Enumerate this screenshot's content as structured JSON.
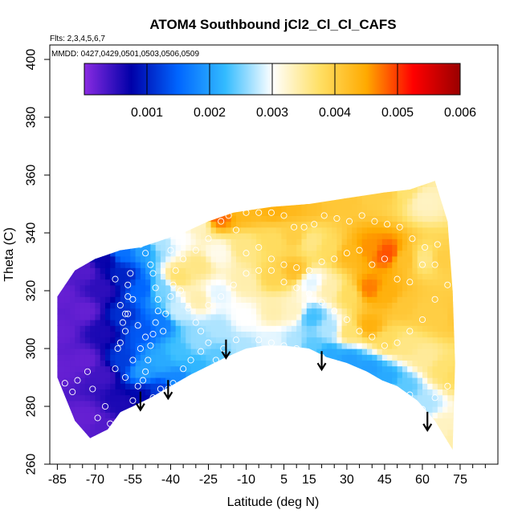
{
  "chart_data": {
    "type": "heatmap",
    "title": "ATOM4 Southbound jCl2_Cl_Cl_CAFS",
    "subtitle_flights": "Flts: 2,3,4,5,6,7",
    "subtitle_dates": "MMDD: 0427,0429,0501,0503,0506,0509",
    "xlabel": "Latitude (deg N)",
    "ylabel": "Theta (C)",
    "xlim": [
      -88,
      90
    ],
    "ylim": [
      260,
      405
    ],
    "x_ticks": [
      "-85",
      "-70",
      "-55",
      "-40",
      "-25",
      "-10",
      "5",
      "15",
      "30",
      "45",
      "60",
      "75"
    ],
    "x_tick_values": [
      -85,
      -70,
      -55,
      -40,
      -25,
      -10,
      5,
      15,
      30,
      45,
      60,
      75
    ],
    "y_ticks": [
      "260",
      "280",
      "300",
      "320",
      "340",
      "360",
      "380",
      "400"
    ],
    "y_tick_values": [
      260,
      280,
      300,
      320,
      340,
      360,
      380,
      400
    ],
    "colorbar": {
      "min": 0.0,
      "max": 0.006,
      "tick_labels": [
        "0.001",
        "0.002",
        "0.003",
        "0.004",
        "0.005",
        "0.006"
      ],
      "tick_values": [
        0.001,
        0.002,
        0.003,
        0.004,
        0.005,
        0.006
      ],
      "colors": [
        "#8a2be2",
        "#0000a8",
        "#0066ff",
        "#33bbff",
        "#ffffff",
        "#ffe066",
        "#ffaa00",
        "#ff0000",
        "#990000"
      ]
    },
    "field_boundary": {
      "top": [
        [
          -85,
          318
        ],
        [
          -78,
          327
        ],
        [
          -70,
          331
        ],
        [
          -60,
          334
        ],
        [
          -52,
          335
        ],
        [
          -45,
          337
        ],
        [
          -35,
          340
        ],
        [
          -25,
          344
        ],
        [
          -15,
          347
        ],
        [
          0,
          349
        ],
        [
          15,
          350
        ],
        [
          30,
          352
        ],
        [
          45,
          354
        ],
        [
          55,
          355
        ],
        [
          65,
          358
        ],
        [
          70,
          344
        ],
        [
          72,
          320
        ],
        [
          73,
          295
        ],
        [
          72,
          265
        ]
      ],
      "bottom": [
        [
          72,
          265
        ],
        [
          65,
          275
        ],
        [
          58,
          282
        ],
        [
          50,
          287
        ],
        [
          44,
          289
        ],
        [
          38,
          292
        ],
        [
          30,
          295
        ],
        [
          22,
          297
        ],
        [
          15,
          300
        ],
        [
          5,
          301
        ],
        [
          -3,
          301
        ],
        [
          -10,
          300
        ],
        [
          -18,
          297
        ],
        [
          -25,
          294
        ],
        [
          -32,
          291
        ],
        [
          -40,
          287
        ],
        [
          -48,
          283
        ],
        [
          -55,
          280
        ],
        [
          -60,
          278
        ],
        [
          -65,
          272
        ],
        [
          -72,
          269
        ],
        [
          -78,
          275
        ],
        [
          -85,
          290
        ]
      ]
    },
    "field_points": [
      {
        "x": -85,
        "y": 292,
        "v": 0.0002
      },
      {
        "x": -85,
        "y": 305,
        "v": 0.0002
      },
      {
        "x": -85,
        "y": 318,
        "v": 0.0002
      },
      {
        "x": -75,
        "y": 275,
        "v": 0.0002
      },
      {
        "x": -75,
        "y": 295,
        "v": 0.0002
      },
      {
        "x": -75,
        "y": 312,
        "v": 0.0002
      },
      {
        "x": -75,
        "y": 326,
        "v": 0.0003
      },
      {
        "x": -68,
        "y": 272,
        "v": 0.0003
      },
      {
        "x": -68,
        "y": 290,
        "v": 0.0004
      },
      {
        "x": -68,
        "y": 305,
        "v": 0.0006
      },
      {
        "x": -68,
        "y": 320,
        "v": 0.0005
      },
      {
        "x": -68,
        "y": 330,
        "v": 0.0007
      },
      {
        "x": -60,
        "y": 280,
        "v": 0.0006
      },
      {
        "x": -60,
        "y": 295,
        "v": 0.0012
      },
      {
        "x": -60,
        "y": 310,
        "v": 0.0011
      },
      {
        "x": -60,
        "y": 324,
        "v": 0.001
      },
      {
        "x": -60,
        "y": 333,
        "v": 0.0016
      },
      {
        "x": -52,
        "y": 282,
        "v": 0.0008
      },
      {
        "x": -52,
        "y": 292,
        "v": 0.002
      },
      {
        "x": -52,
        "y": 306,
        "v": 0.0014
      },
      {
        "x": -52,
        "y": 320,
        "v": 0.0015
      },
      {
        "x": -52,
        "y": 334,
        "v": 0.002
      },
      {
        "x": -45,
        "y": 284,
        "v": 0.0012
      },
      {
        "x": -45,
        "y": 295,
        "v": 0.0021
      },
      {
        "x": -45,
        "y": 308,
        "v": 0.0017
      },
      {
        "x": -45,
        "y": 320,
        "v": 0.0025
      },
      {
        "x": -45,
        "y": 336,
        "v": 0.0027
      },
      {
        "x": -38,
        "y": 288,
        "v": 0.0018
      },
      {
        "x": -38,
        "y": 298,
        "v": 0.0023
      },
      {
        "x": -38,
        "y": 312,
        "v": 0.0028
      },
      {
        "x": -38,
        "y": 324,
        "v": 0.0037
      },
      {
        "x": -38,
        "y": 338,
        "v": 0.003
      },
      {
        "x": -30,
        "y": 292,
        "v": 0.0022
      },
      {
        "x": -30,
        "y": 302,
        "v": 0.0026
      },
      {
        "x": -30,
        "y": 316,
        "v": 0.0034
      },
      {
        "x": -30,
        "y": 328,
        "v": 0.0036
      },
      {
        "x": -30,
        "y": 342,
        "v": 0.0033
      },
      {
        "x": -22,
        "y": 296,
        "v": 0.0024
      },
      {
        "x": -22,
        "y": 306,
        "v": 0.0027
      },
      {
        "x": -22,
        "y": 318,
        "v": 0.0029
      },
      {
        "x": -22,
        "y": 332,
        "v": 0.0031
      },
      {
        "x": -22,
        "y": 345,
        "v": 0.0048
      },
      {
        "x": -12,
        "y": 299,
        "v": 0.0027
      },
      {
        "x": -12,
        "y": 310,
        "v": 0.003
      },
      {
        "x": -12,
        "y": 322,
        "v": 0.0034
      },
      {
        "x": -12,
        "y": 334,
        "v": 0.0036
      },
      {
        "x": -12,
        "y": 347,
        "v": 0.0043
      },
      {
        "x": 0,
        "y": 301,
        "v": 0.0029
      },
      {
        "x": 0,
        "y": 312,
        "v": 0.0034
      },
      {
        "x": 0,
        "y": 324,
        "v": 0.0039
      },
      {
        "x": 0,
        "y": 336,
        "v": 0.0038
      },
      {
        "x": 0,
        "y": 348,
        "v": 0.0044
      },
      {
        "x": 8,
        "y": 301,
        "v": 0.0027
      },
      {
        "x": 8,
        "y": 312,
        "v": 0.0033
      },
      {
        "x": 8,
        "y": 326,
        "v": 0.0042
      },
      {
        "x": 8,
        "y": 338,
        "v": 0.004
      },
      {
        "x": 8,
        "y": 349,
        "v": 0.0043
      },
      {
        "x": 15,
        "y": 300,
        "v": 0.0024
      },
      {
        "x": 15,
        "y": 310,
        "v": 0.0023
      },
      {
        "x": 15,
        "y": 322,
        "v": 0.0029
      },
      {
        "x": 15,
        "y": 336,
        "v": 0.0036
      },
      {
        "x": 15,
        "y": 350,
        "v": 0.0042
      },
      {
        "x": 22,
        "y": 297,
        "v": 0.0021
      },
      {
        "x": 22,
        "y": 306,
        "v": 0.0027
      },
      {
        "x": 22,
        "y": 320,
        "v": 0.0034
      },
      {
        "x": 22,
        "y": 334,
        "v": 0.0038
      },
      {
        "x": 22,
        "y": 351,
        "v": 0.0041
      },
      {
        "x": 30,
        "y": 295,
        "v": 0.002
      },
      {
        "x": 30,
        "y": 305,
        "v": 0.0037
      },
      {
        "x": 30,
        "y": 318,
        "v": 0.0038
      },
      {
        "x": 30,
        "y": 332,
        "v": 0.0043
      },
      {
        "x": 30,
        "y": 352,
        "v": 0.0041
      },
      {
        "x": 38,
        "y": 292,
        "v": 0.002
      },
      {
        "x": 38,
        "y": 307,
        "v": 0.0044
      },
      {
        "x": 38,
        "y": 320,
        "v": 0.0047
      },
      {
        "x": 38,
        "y": 334,
        "v": 0.0046
      },
      {
        "x": 38,
        "y": 353,
        "v": 0.004
      },
      {
        "x": 45,
        "y": 289,
        "v": 0.0021
      },
      {
        "x": 45,
        "y": 302,
        "v": 0.0038
      },
      {
        "x": 45,
        "y": 318,
        "v": 0.0044
      },
      {
        "x": 45,
        "y": 332,
        "v": 0.0049
      },
      {
        "x": 45,
        "y": 354,
        "v": 0.004
      },
      {
        "x": 52,
        "y": 286,
        "v": 0.0024
      },
      {
        "x": 52,
        "y": 300,
        "v": 0.0036
      },
      {
        "x": 52,
        "y": 314,
        "v": 0.0041
      },
      {
        "x": 52,
        "y": 330,
        "v": 0.0042
      },
      {
        "x": 52,
        "y": 354,
        "v": 0.0037
      },
      {
        "x": 60,
        "y": 280,
        "v": 0.0027
      },
      {
        "x": 60,
        "y": 296,
        "v": 0.0035
      },
      {
        "x": 60,
        "y": 312,
        "v": 0.004
      },
      {
        "x": 60,
        "y": 330,
        "v": 0.0036
      },
      {
        "x": 60,
        "y": 350,
        "v": 0.0033
      },
      {
        "x": 67,
        "y": 272,
        "v": 0.0033
      },
      {
        "x": 67,
        "y": 292,
        "v": 0.0037
      },
      {
        "x": 67,
        "y": 310,
        "v": 0.004
      },
      {
        "x": 67,
        "y": 330,
        "v": 0.004
      },
      {
        "x": 72,
        "y": 268,
        "v": 0.0034
      },
      {
        "x": 72,
        "y": 290,
        "v": 0.0038
      },
      {
        "x": 72,
        "y": 310,
        "v": 0.0041
      }
    ],
    "samples": [
      [
        -82,
        288
      ],
      [
        -79,
        285
      ],
      [
        -77,
        289
      ],
      [
        -73,
        292
      ],
      [
        -71,
        286
      ],
      [
        -69,
        276
      ],
      [
        -66,
        280
      ],
      [
        -64,
        274
      ],
      [
        -62,
        293
      ],
      [
        -61,
        300
      ],
      [
        -60,
        302
      ],
      [
        -58,
        306
      ],
      [
        -58,
        312
      ],
      [
        -57,
        318
      ],
      [
        -57,
        322
      ],
      [
        -56,
        326
      ],
      [
        -59,
        309
      ],
      [
        -60,
        315
      ],
      [
        -62,
        324
      ],
      [
        -55,
        282
      ],
      [
        -53,
        287
      ],
      [
        -51,
        289
      ],
      [
        -50,
        292
      ],
      [
        -49,
        296
      ],
      [
        -48,
        301
      ],
      [
        -47,
        305
      ],
      [
        -46,
        309
      ],
      [
        -45,
        313
      ],
      [
        -45,
        317
      ],
      [
        -46,
        321
      ],
      [
        -47,
        326
      ],
      [
        -48,
        329
      ],
      [
        -50,
        333
      ],
      [
        -52,
        336
      ],
      [
        -49,
        280
      ],
      [
        -47,
        283
      ],
      [
        -44,
        286
      ],
      [
        -41,
        286
      ],
      [
        -39,
        288
      ],
      [
        -43,
        306
      ],
      [
        -42,
        312
      ],
      [
        -40,
        318
      ],
      [
        -39,
        322
      ],
      [
        -38,
        327
      ],
      [
        -36,
        320
      ],
      [
        -33,
        314
      ],
      [
        -30,
        309
      ],
      [
        -28,
        306
      ],
      [
        -25,
        302
      ],
      [
        -22,
        296
      ],
      [
        -19,
        300
      ],
      [
        -14,
        303
      ],
      [
        -35,
        293
      ],
      [
        -32,
        296
      ],
      [
        -28,
        299
      ],
      [
        -20,
        344
      ],
      [
        -17,
        346
      ],
      [
        -14,
        341
      ],
      [
        -10,
        347
      ],
      [
        -5,
        347
      ],
      [
        0,
        347
      ],
      [
        5,
        346
      ],
      [
        9,
        342
      ],
      [
        13,
        342
      ],
      [
        17,
        343
      ],
      [
        21,
        346
      ],
      [
        26,
        345
      ],
      [
        31,
        344
      ],
      [
        36,
        346
      ],
      [
        41,
        344
      ],
      [
        46,
        343
      ],
      [
        51,
        342
      ],
      [
        56,
        338
      ],
      [
        61,
        335
      ],
      [
        66,
        336
      ],
      [
        -10,
        333
      ],
      [
        -5,
        335
      ],
      [
        0,
        331
      ],
      [
        5,
        329
      ],
      [
        10,
        328
      ],
      [
        15,
        327
      ],
      [
        20,
        330
      ],
      [
        25,
        331
      ],
      [
        30,
        333
      ],
      [
        35,
        334
      ],
      [
        40,
        329
      ],
      [
        45,
        331
      ],
      [
        50,
        324
      ],
      [
        55,
        323
      ],
      [
        60,
        329
      ],
      [
        65,
        329
      ],
      [
        -25,
        315
      ],
      [
        -20,
        318
      ],
      [
        -15,
        322
      ],
      [
        -10,
        326
      ],
      [
        -5,
        327
      ],
      [
        0,
        327
      ],
      [
        5,
        323
      ],
      [
        10,
        321
      ],
      [
        15,
        319
      ],
      [
        20,
        316
      ],
      [
        25,
        313
      ],
      [
        30,
        310
      ],
      [
        35,
        306
      ],
      [
        40,
        304
      ],
      [
        45,
        301
      ],
      [
        50,
        302
      ],
      [
        55,
        306
      ],
      [
        60,
        310
      ],
      [
        65,
        317
      ],
      [
        70,
        322
      ],
      [
        -5,
        303
      ],
      [
        0,
        302
      ],
      [
        5,
        301
      ],
      [
        10,
        300
      ],
      [
        15,
        298
      ],
      [
        20,
        297
      ],
      [
        25,
        295
      ],
      [
        30,
        293
      ],
      [
        35,
        291
      ],
      [
        40,
        289
      ],
      [
        45,
        284
      ],
      [
        50,
        281
      ],
      [
        55,
        284
      ],
      [
        60,
        279
      ],
      [
        65,
        283
      ],
      [
        70,
        287
      ],
      [
        -30,
        334
      ],
      [
        -25,
        338
      ],
      [
        -35,
        331
      ],
      [
        -40,
        334
      ],
      [
        -55,
        317
      ],
      [
        -57,
        312
      ],
      [
        -53,
        308
      ],
      [
        -50,
        304
      ],
      [
        -52,
        300
      ],
      [
        -55,
        296
      ],
      [
        -58,
        290
      ]
    ],
    "arrows": [
      [
        -52,
        279
      ],
      [
        -41,
        283
      ],
      [
        -18,
        297
      ],
      [
        20,
        293
      ],
      [
        62,
        272
      ]
    ]
  }
}
